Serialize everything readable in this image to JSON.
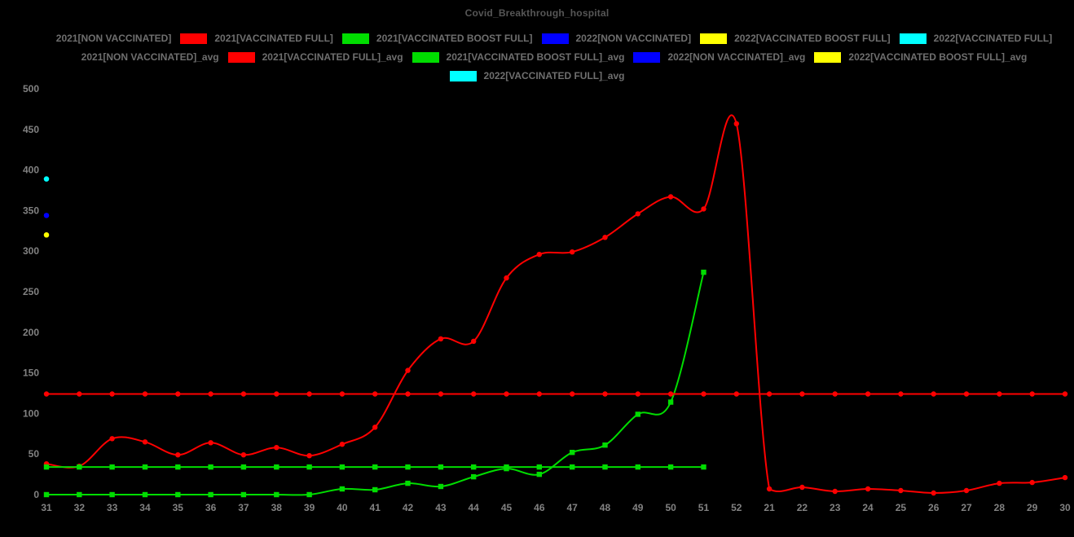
{
  "title": "Covid_Breakthrough_hospital",
  "palette": {
    "background": "#000000",
    "title_text": "#565656",
    "legend_text": "#6f6f6f",
    "tick_text": "#828282"
  },
  "chart_data": {
    "type": "line",
    "title": "Covid_Breakthrough_hospital",
    "xlabel": "",
    "ylabel": "",
    "ylim": [
      0,
      500
    ],
    "y_ticks": [
      0,
      50,
      100,
      150,
      200,
      250,
      300,
      350,
      400,
      450,
      500
    ],
    "grid": false,
    "legend_position": "top",
    "line_style": "smooth",
    "categories": [
      "31",
      "32",
      "33",
      "34",
      "35",
      "36",
      "37",
      "38",
      "39",
      "40",
      "41",
      "42",
      "43",
      "44",
      "45",
      "46",
      "47",
      "48",
      "49",
      "50",
      "51",
      "52",
      "21",
      "22",
      "23",
      "24",
      "25",
      "26",
      "27",
      "28",
      "29",
      "30"
    ],
    "series": [
      {
        "name": "2021[NON VACCINATED]",
        "color": "#000000",
        "marker": "circle",
        "visible": false,
        "values": []
      },
      {
        "name": "2021[VACCINATED FULL]",
        "color": "#ff0000",
        "marker": "circle",
        "visible": true,
        "values": [
          38,
          35,
          69,
          65,
          49,
          64,
          49,
          58,
          48,
          62,
          83,
          153,
          192,
          189,
          267,
          296,
          299,
          317,
          346,
          367,
          352,
          457,
          7,
          9,
          4,
          7,
          5,
          2,
          5,
          14,
          15,
          21
        ]
      },
      {
        "name": "2021[VACCINATED BOOST FULL]",
        "color": "#00dd00",
        "marker": "square",
        "visible": true,
        "values": [
          0,
          0,
          0,
          0,
          0,
          0,
          0,
          0,
          0,
          7,
          6,
          14,
          10,
          22,
          32,
          25,
          52,
          61,
          99,
          114,
          274
        ]
      },
      {
        "name": "2022[NON VACCINATED]",
        "color": "#0000ff",
        "marker": "circle",
        "visible": true,
        "points": [
          {
            "x": "31",
            "y": 344
          }
        ]
      },
      {
        "name": "2022[VACCINATED BOOST FULL]",
        "color": "#ffff00",
        "marker": "circle",
        "visible": true,
        "points": [
          {
            "x": "31",
            "y": 320
          }
        ]
      },
      {
        "name": "2022[VACCINATED FULL]",
        "color": "#00ffff",
        "marker": "circle",
        "visible": true,
        "points": [
          {
            "x": "31",
            "y": 389
          }
        ]
      },
      {
        "name": "2021[NON VACCINATED]_avg",
        "color": "#000000",
        "marker": "circle",
        "visible": false,
        "values": []
      },
      {
        "name": "2021[VACCINATED FULL]_avg",
        "color": "#ff0000",
        "marker": "circle",
        "visible": true,
        "values": [
          124,
          124,
          124,
          124,
          124,
          124,
          124,
          124,
          124,
          124,
          124,
          124,
          124,
          124,
          124,
          124,
          124,
          124,
          124,
          124,
          124,
          124,
          124,
          124,
          124,
          124,
          124,
          124,
          124,
          124,
          124,
          124
        ]
      },
      {
        "name": "2021[VACCINATED BOOST FULL]_avg",
        "color": "#00dd00",
        "marker": "square",
        "visible": true,
        "values": [
          34,
          34,
          34,
          34,
          34,
          34,
          34,
          34,
          34,
          34,
          34,
          34,
          34,
          34,
          34,
          34,
          34,
          34,
          34,
          34,
          34
        ]
      },
      {
        "name": "2022[NON VACCINATED]_avg",
        "color": "#0000ff",
        "marker": "circle",
        "visible": true,
        "points": [
          {
            "x": "31",
            "y": 344
          }
        ]
      },
      {
        "name": "2022[VACCINATED BOOST FULL]_avg",
        "color": "#ffff00",
        "marker": "circle",
        "visible": true,
        "points": [
          {
            "x": "31",
            "y": 320
          }
        ]
      },
      {
        "name": "2022[VACCINATED FULL]_avg",
        "color": "#00ffff",
        "marker": "circle",
        "visible": true,
        "points": [
          {
            "x": "31",
            "y": 389
          }
        ]
      }
    ]
  }
}
